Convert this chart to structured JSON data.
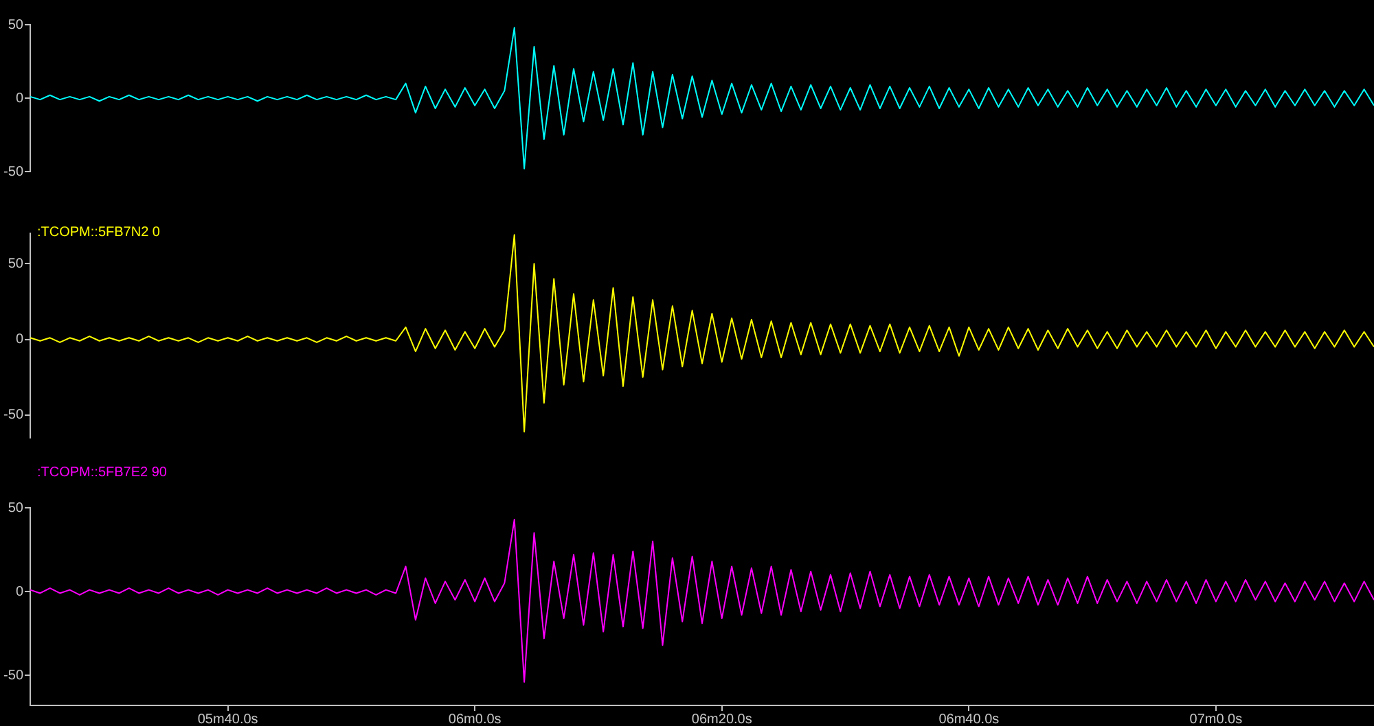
{
  "chart_data": [
    {
      "type": "line",
      "marker": "none",
      "tick_labels": "y",
      "ylim": [
        -50,
        50
      ],
      "yticks": [
        -50,
        0,
        50
      ],
      "categories": [
        null,
        null,
        null,
        null,
        null,
        null,
        null,
        null,
        null,
        null,
        null,
        null,
        null,
        null,
        null,
        null,
        null,
        null,
        null,
        null,
        null,
        null,
        null,
        null,
        null,
        null,
        null,
        null,
        null,
        null,
        null,
        null,
        null,
        null,
        null,
        null,
        null,
        null,
        null,
        null,
        null,
        null,
        null,
        null,
        null,
        null,
        null,
        null,
        null,
        null,
        null,
        null,
        null,
        null,
        null,
        null,
        null,
        null,
        null,
        null,
        null,
        null,
        null,
        null,
        null,
        null,
        null,
        null,
        null,
        null,
        null,
        null,
        null,
        null,
        null,
        null,
        null,
        null,
        null,
        null,
        null,
        null,
        null,
        null,
        null,
        null,
        null,
        null,
        null,
        null,
        null,
        null,
        null,
        null,
        null,
        null,
        null,
        null,
        null,
        null,
        null,
        null,
        null,
        null,
        null,
        null,
        null,
        null,
        null,
        null,
        null,
        null,
        null,
        null,
        null,
        null,
        null,
        null,
        null,
        null,
        null,
        null,
        null,
        null,
        null,
        null,
        null,
        null,
        null,
        null,
        null,
        null,
        null,
        null,
        null,
        null,
        null
      ],
      "series": [
        {
          "color": "#00ffff",
          "values": [
            1,
            -1,
            2,
            -1,
            1,
            -1,
            1,
            -2,
            1,
            -1,
            2,
            -1,
            1,
            -1,
            1,
            -1,
            2,
            -1,
            1,
            -1,
            1,
            -1,
            1,
            -2,
            1,
            -1,
            1,
            -1,
            2,
            -1,
            1,
            -1,
            1,
            -1,
            2,
            -1,
            1,
            -1,
            10,
            -10,
            8,
            -7,
            6,
            -6,
            7,
            -5,
            6,
            -7,
            5,
            48,
            -48,
            35,
            -28,
            22,
            -25,
            20,
            -16,
            18,
            -15,
            20,
            -18,
            24,
            -25,
            18,
            -20,
            16,
            -14,
            15,
            -13,
            12,
            -11,
            10,
            -10,
            9,
            -8,
            10,
            -9,
            8,
            -8,
            9,
            -7,
            8,
            -8,
            7,
            -8,
            9,
            -7,
            8,
            -7,
            7,
            -6,
            8,
            -7,
            7,
            -6,
            6,
            -7,
            7,
            -6,
            6,
            -6,
            7,
            -5,
            6,
            -6,
            5,
            -6,
            7,
            -5,
            6,
            -6,
            5,
            -6,
            6,
            -5,
            7,
            -6,
            5,
            -6,
            6,
            -5,
            6,
            -6,
            5,
            -5,
            6,
            -6,
            5,
            -5,
            6,
            -5,
            5,
            -6,
            5,
            -5,
            6,
            -5
          ]
        }
      ]
    },
    {
      "type": "line",
      "marker": "none",
      "tick_labels": "y",
      "ylim": [
        -65,
        70
      ],
      "yticks": [
        -50,
        0,
        50
      ],
      "categories": [
        null,
        null,
        null,
        null,
        null,
        null,
        null,
        null,
        null,
        null,
        null,
        null,
        null,
        null,
        null,
        null,
        null,
        null,
        null,
        null,
        null,
        null,
        null,
        null,
        null,
        null,
        null,
        null,
        null,
        null,
        null,
        null,
        null,
        null,
        null,
        null,
        null,
        null,
        null,
        null,
        null,
        null,
        null,
        null,
        null,
        null,
        null,
        null,
        null,
        null,
        null,
        null,
        null,
        null,
        null,
        null,
        null,
        null,
        null,
        null,
        null,
        null,
        null,
        null,
        null,
        null,
        null,
        null,
        null,
        null,
        null,
        null,
        null,
        null,
        null,
        null,
        null,
        null,
        null,
        null,
        null,
        null,
        null,
        null,
        null,
        null,
        null,
        null,
        null,
        null,
        null,
        null,
        null,
        null,
        null,
        null,
        null,
        null,
        null,
        null,
        null,
        null,
        null,
        null,
        null,
        null,
        null,
        null,
        null,
        null,
        null,
        null,
        null,
        null,
        null,
        null,
        null,
        null,
        null,
        null,
        null,
        null,
        null,
        null,
        null,
        null,
        null,
        null,
        null,
        null,
        null,
        null,
        null,
        null,
        null,
        null,
        null
      ],
      "series": [
        {
          "name": ":TCOPM::5FB7N2 0",
          "color": "#ffff00",
          "values": [
            1,
            -1,
            1,
            -2,
            1,
            -1,
            2,
            -1,
            1,
            -1,
            1,
            -1,
            2,
            -1,
            1,
            -1,
            1,
            -2,
            1,
            -1,
            1,
            -1,
            2,
            -1,
            1,
            -1,
            1,
            -1,
            1,
            -2,
            1,
            -1,
            2,
            -1,
            1,
            -1,
            1,
            -1,
            8,
            -8,
            7,
            -6,
            6,
            -7,
            5,
            -6,
            7,
            -5,
            6,
            69,
            -61,
            50,
            -42,
            40,
            -30,
            30,
            -28,
            26,
            -24,
            34,
            -31,
            28,
            -25,
            26,
            -20,
            22,
            -18,
            19,
            -16,
            17,
            -15,
            14,
            -13,
            13,
            -12,
            12,
            -12,
            11,
            -10,
            11,
            -10,
            10,
            -9,
            10,
            -9,
            9,
            -8,
            10,
            -9,
            8,
            -8,
            9,
            -8,
            8,
            -11,
            8,
            -7,
            7,
            -7,
            8,
            -6,
            7,
            -7,
            6,
            -6,
            7,
            -5,
            6,
            -6,
            5,
            -6,
            6,
            -5,
            5,
            -5,
            6,
            -5,
            5,
            -5,
            6,
            -6,
            5,
            -5,
            6,
            -5,
            5,
            -5,
            6,
            -5,
            5,
            -6,
            5,
            -5,
            6,
            -5,
            5,
            -5
          ]
        }
      ]
    },
    {
      "type": "line",
      "marker": "none",
      "ylim": [
        -68,
        50
      ],
      "yticks": [
        -50,
        0,
        50
      ],
      "categories": [
        null,
        null,
        null,
        null,
        null,
        null,
        null,
        null,
        null,
        null,
        null,
        null,
        null,
        null,
        null,
        null,
        null,
        null,
        null,
        null,
        "05m40.0s",
        null,
        null,
        null,
        null,
        null,
        null,
        null,
        null,
        null,
        null,
        null,
        null,
        null,
        null,
        null,
        null,
        null,
        null,
        null,
        null,
        null,
        null,
        null,
        null,
        "06m0.0s",
        null,
        null,
        null,
        null,
        null,
        null,
        null,
        null,
        null,
        null,
        null,
        null,
        null,
        null,
        null,
        null,
        null,
        null,
        null,
        null,
        null,
        null,
        null,
        null,
        "06m20.0s",
        null,
        null,
        null,
        null,
        null,
        null,
        null,
        null,
        null,
        null,
        null,
        null,
        null,
        null,
        null,
        null,
        null,
        null,
        null,
        null,
        null,
        null,
        null,
        null,
        "06m40.0s",
        null,
        null,
        null,
        null,
        null,
        null,
        null,
        null,
        null,
        null,
        null,
        null,
        null,
        null,
        null,
        null,
        null,
        null,
        null,
        null,
        null,
        null,
        null,
        null,
        "07m0.0s",
        null,
        null,
        null,
        null,
        null,
        null,
        null,
        null,
        null,
        null,
        null,
        null,
        null,
        null,
        null,
        null
      ],
      "series": [
        {
          "name": ":TCOPM::5FB7E2 90",
          "color": "#ff00ff",
          "values": [
            1,
            -1,
            2,
            -1,
            1,
            -2,
            1,
            -1,
            1,
            -1,
            2,
            -1,
            1,
            -1,
            2,
            -1,
            1,
            -1,
            1,
            -2,
            1,
            -1,
            1,
            -1,
            2,
            -1,
            1,
            -1,
            1,
            -1,
            2,
            -1,
            1,
            -1,
            1,
            -2,
            1,
            -1,
            15,
            -17,
            8,
            -7,
            6,
            -5,
            7,
            -6,
            8,
            -6,
            5,
            43,
            -54,
            35,
            -28,
            18,
            -16,
            22,
            -20,
            23,
            -24,
            22,
            -21,
            24,
            -22,
            30,
            -32,
            20,
            -18,
            21,
            -19,
            18,
            -16,
            15,
            -14,
            14,
            -13,
            15,
            -14,
            13,
            -12,
            12,
            -11,
            10,
            -12,
            11,
            -10,
            12,
            -9,
            10,
            -10,
            9,
            -9,
            10,
            -8,
            9,
            -8,
            8,
            -9,
            9,
            -8,
            8,
            -7,
            9,
            -8,
            7,
            -8,
            8,
            -7,
            9,
            -7,
            7,
            -6,
            6,
            -7,
            6,
            -6,
            7,
            -6,
            6,
            -7,
            7,
            -6,
            6,
            -6,
            7,
            -5,
            6,
            -6,
            5,
            -6,
            6,
            -5,
            6,
            -6,
            5,
            -6,
            6,
            -5
          ]
        }
      ]
    }
  ]
}
